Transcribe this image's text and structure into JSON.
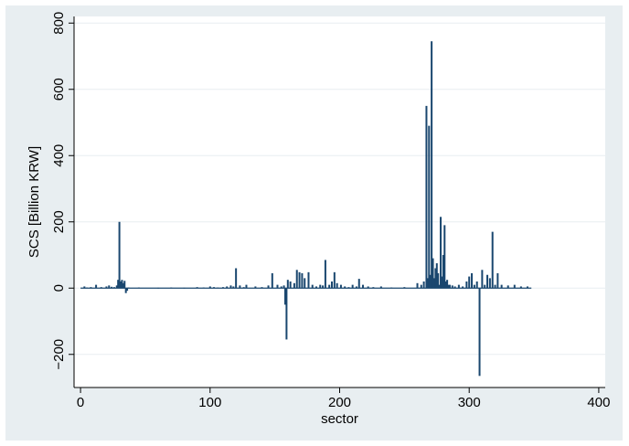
{
  "chart_data": {
    "type": "bar",
    "title": "",
    "xlabel": "sector",
    "ylabel": "SCS [Billion KRW]",
    "xlim": [
      -5,
      405
    ],
    "ylim": [
      -300,
      820
    ],
    "x_ticks": [
      0,
      100,
      200,
      300,
      400
    ],
    "y_ticks": [
      -200,
      0,
      200,
      400,
      600,
      800
    ],
    "grid": true,
    "legend": "none",
    "colors": {
      "bar": "#1a476f",
      "plot_bg": "#ffffff",
      "frame_bg": "#e8eef1",
      "grid": "#e8eef1"
    },
    "series": [
      {
        "x": [
          3,
          5,
          8,
          12,
          16,
          20,
          22,
          24,
          26,
          28,
          29,
          30,
          31,
          32,
          33,
          34,
          35,
          36,
          37,
          45,
          60,
          70,
          80,
          90,
          95,
          100,
          103,
          106,
          110,
          113,
          116,
          118,
          120,
          123,
          126,
          128,
          135,
          140,
          145,
          148,
          152,
          155,
          157,
          158,
          159,
          160,
          162,
          165,
          167,
          169,
          171,
          173,
          176,
          179,
          182,
          185,
          187,
          189,
          192,
          194,
          196,
          198,
          201,
          204,
          207,
          210,
          213,
          215,
          218,
          222,
          226,
          232,
          240,
          250,
          260,
          263,
          265,
          267,
          268,
          269,
          270,
          271,
          272,
          273,
          274,
          275,
          276,
          277,
          278,
          279,
          280,
          281,
          282,
          283,
          284,
          285,
          287,
          289,
          292,
          295,
          298,
          300,
          302,
          304,
          306,
          308,
          310,
          312,
          314,
          316,
          318,
          320,
          322,
          325,
          330,
          335,
          340,
          345
        ],
        "values": [
          5,
          2,
          3,
          10,
          3,
          5,
          8,
          4,
          3,
          8,
          25,
          200,
          20,
          25,
          15,
          22,
          -15,
          -8,
          2,
          2,
          1,
          2,
          1,
          3,
          2,
          5,
          3,
          2,
          3,
          5,
          8,
          5,
          60,
          8,
          3,
          10,
          5,
          3,
          8,
          45,
          10,
          5,
          8,
          -50,
          -155,
          25,
          20,
          15,
          55,
          48,
          45,
          30,
          48,
          10,
          5,
          10,
          8,
          85,
          10,
          20,
          48,
          15,
          10,
          5,
          3,
          10,
          5,
          28,
          10,
          5,
          3,
          5,
          2,
          3,
          15,
          10,
          20,
          550,
          30,
          490,
          40,
          745,
          90,
          30,
          60,
          75,
          45,
          10,
          215,
          35,
          100,
          190,
          20,
          25,
          10,
          10,
          8,
          5,
          10,
          5,
          20,
          35,
          45,
          10,
          20,
          -265,
          55,
          10,
          40,
          30,
          170,
          10,
          45,
          10,
          8,
          10,
          5,
          5
        ]
      }
    ]
  }
}
